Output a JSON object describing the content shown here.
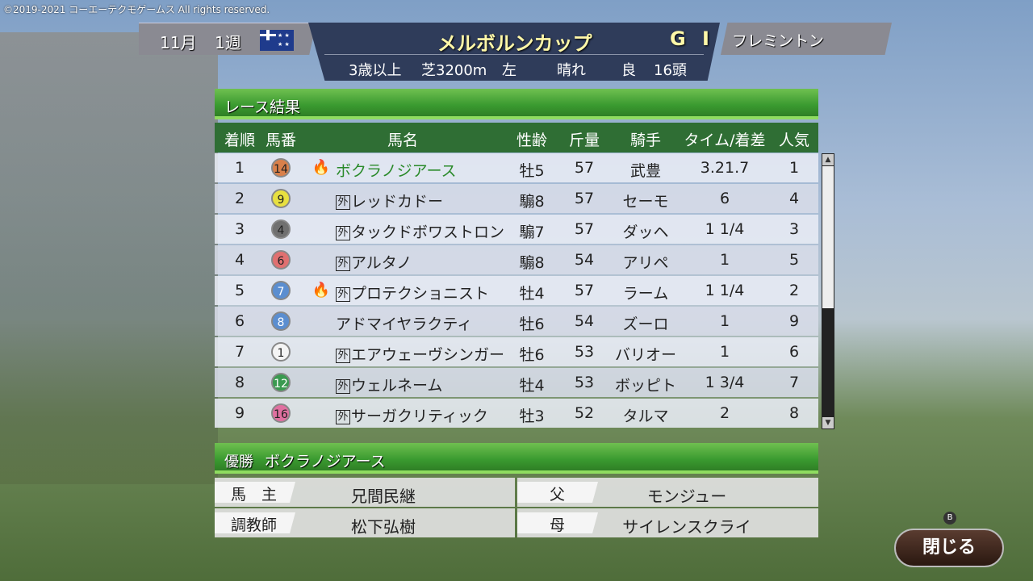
{
  "copyright": "©2019-2021 コーエーテクモゲームス All rights reserved.",
  "header": {
    "month": "11月",
    "week": "1週",
    "flag": "australia-flag",
    "race_name": "メルボルンカップ",
    "grade": "G I",
    "venue": "フレミントン",
    "conditions": {
      "age": "3歳以上",
      "surface_distance": "芝3200m",
      "direction": "左",
      "weather": "晴れ",
      "going": "良",
      "runners": "16頭"
    }
  },
  "results_title": "レース結果",
  "columns": [
    "着順",
    "馬番",
    "馬名",
    "性齢",
    "斤量",
    "騎手",
    "タイム/着差",
    "人気"
  ],
  "rows": [
    {
      "pos": "1",
      "num": "14",
      "color": "#d9804a",
      "fire": true,
      "foreign": false,
      "name": "ボクラノジアース",
      "sexage": "牡5",
      "weight": "57",
      "jockey": "武豊",
      "time": "3.21.7",
      "pop": "1",
      "highlight": true
    },
    {
      "pos": "2",
      "num": "9",
      "color": "#e8e040",
      "fire": false,
      "foreign": true,
      "name": "レッドカドー",
      "sexage": "騸8",
      "weight": "57",
      "jockey": "セーモ",
      "time": "6",
      "pop": "4"
    },
    {
      "pos": "3",
      "num": "4",
      "color": "#707070",
      "fire": false,
      "foreign": true,
      "name": "タックドボワストロン",
      "sexage": "騸7",
      "weight": "57",
      "jockey": "ダッヘ",
      "time": "1 1/4",
      "pop": "3"
    },
    {
      "pos": "4",
      "num": "6",
      "color": "#e07070",
      "fire": false,
      "foreign": true,
      "name": "アルタノ",
      "sexage": "騸8",
      "weight": "54",
      "jockey": "アリペ",
      "time": "1",
      "pop": "5"
    },
    {
      "pos": "5",
      "num": "7",
      "color": "#5b8ed0",
      "fire": true,
      "foreign": true,
      "name": "プロテクショニスト",
      "sexage": "牡4",
      "weight": "57",
      "jockey": "ラーム",
      "time": "1 1/4",
      "pop": "2"
    },
    {
      "pos": "6",
      "num": "8",
      "color": "#5b8ed0",
      "fire": false,
      "foreign": false,
      "name": "アドマイヤラクティ",
      "sexage": "牡6",
      "weight": "54",
      "jockey": "ズーロ",
      "time": "1",
      "pop": "9"
    },
    {
      "pos": "7",
      "num": "1",
      "color": "#f4f4f4",
      "fire": false,
      "foreign": true,
      "name": "エアウェーヴシンガー",
      "sexage": "牡6",
      "weight": "53",
      "jockey": "バリオー",
      "time": "1",
      "pop": "6"
    },
    {
      "pos": "8",
      "num": "12",
      "color": "#3a9a50",
      "fire": false,
      "foreign": true,
      "name": "ウェルネーム",
      "sexage": "牡4",
      "weight": "53",
      "jockey": "ボッピト",
      "time": "1 3/4",
      "pop": "7"
    },
    {
      "pos": "9",
      "num": "16",
      "color": "#e070a0",
      "fire": false,
      "foreign": true,
      "name": "サーガクリティック",
      "sexage": "牡3",
      "weight": "52",
      "jockey": "タルマ",
      "time": "2",
      "pop": "8"
    }
  ],
  "foreign_mark": "外",
  "winner": {
    "label": "優勝",
    "name": "ボクラノジアース",
    "owner_label": "馬　主",
    "owner": "兄間民継",
    "trainer_label": "調教師",
    "trainer": "松下弘樹",
    "sire_label": "父",
    "sire": "モンジュー",
    "dam_label": "母",
    "dam": "サイレンスクライ"
  },
  "close_button": {
    "label": "閉じる",
    "key": "B"
  }
}
